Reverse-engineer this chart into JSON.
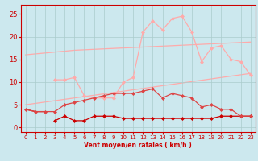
{
  "background_color": "#cce8ee",
  "grid_color": "#aacccc",
  "xlabel": "Vent moyen/en rafales ( km/h )",
  "xlabel_color": "#cc0000",
  "x_ticks": [
    0,
    1,
    2,
    3,
    4,
    5,
    6,
    7,
    8,
    9,
    10,
    11,
    12,
    13,
    14,
    15,
    16,
    17,
    18,
    19,
    20,
    21,
    22,
    23
  ],
  "ylim": [
    -1,
    27
  ],
  "xlim": [
    -0.5,
    23.5
  ],
  "yticks": [
    0,
    5,
    10,
    15,
    20,
    25
  ],
  "lines": [
    {
      "y": [
        16.0,
        16.2,
        16.4,
        16.6,
        16.8,
        17.0,
        17.1,
        17.2,
        17.3,
        17.4,
        17.5,
        17.6,
        17.7,
        17.8,
        17.9,
        18.0,
        18.1,
        18.2,
        18.3,
        18.4,
        18.5,
        18.6,
        18.7,
        18.8
      ],
      "color": "#ffaaaa",
      "linewidth": 0.9,
      "marker": null,
      "markersize": 0,
      "zorder": 1
    },
    {
      "y": [
        5.0,
        5.3,
        5.6,
        5.9,
        6.2,
        6.5,
        6.8,
        7.1,
        7.4,
        7.7,
        8.0,
        8.3,
        8.6,
        8.9,
        9.2,
        9.5,
        9.8,
        10.1,
        10.4,
        10.7,
        11.0,
        11.3,
        11.6,
        11.9
      ],
      "color": "#ffaaaa",
      "linewidth": 0.9,
      "marker": null,
      "markersize": 0,
      "zorder": 1
    },
    {
      "y": [
        null,
        null,
        null,
        10.5,
        10.5,
        11.0,
        7.0,
        6.5,
        6.5,
        6.5,
        10.0,
        11.0,
        21.0,
        23.5,
        21.5,
        24.0,
        24.5,
        21.0,
        14.5,
        17.5,
        18.0,
        15.0,
        14.5,
        11.5
      ],
      "color": "#ffaaaa",
      "linewidth": 0.9,
      "marker": "D",
      "markersize": 2,
      "zorder": 3
    },
    {
      "y": [
        4.0,
        3.5,
        3.5,
        3.5,
        5.0,
        5.5,
        6.0,
        6.5,
        7.0,
        7.5,
        7.5,
        7.5,
        8.0,
        8.5,
        6.5,
        7.5,
        7.0,
        6.5,
        4.5,
        5.0,
        4.0,
        4.0,
        2.5,
        2.5
      ],
      "color": "#dd4444",
      "linewidth": 0.9,
      "marker": "D",
      "markersize": 2,
      "zorder": 4
    },
    {
      "y": [
        null,
        null,
        null,
        1.5,
        2.5,
        1.5,
        1.5,
        2.5,
        2.5,
        2.5,
        2.0,
        2.0,
        2.0,
        2.0,
        2.0,
        2.0,
        2.0,
        2.0,
        2.0,
        2.0,
        2.5,
        2.5,
        2.5,
        2.5
      ],
      "color": "#cc0000",
      "linewidth": 0.9,
      "marker": "D",
      "markersize": 2,
      "zorder": 3
    },
    {
      "y": [
        4.0,
        3.5,
        3.5,
        null,
        null,
        null,
        null,
        null,
        null,
        null,
        null,
        null,
        null,
        null,
        null,
        null,
        null,
        null,
        null,
        null,
        null,
        null,
        null,
        null
      ],
      "color": "#cc0000",
      "linewidth": 0.9,
      "marker": null,
      "markersize": 0,
      "zorder": 3
    }
  ]
}
